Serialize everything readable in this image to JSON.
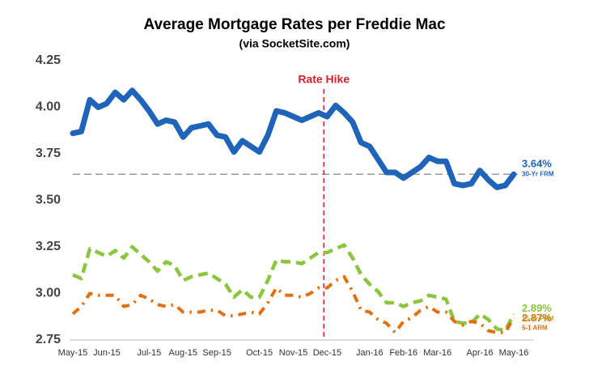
{
  "chart_data": {
    "type": "line",
    "title": "Average Mortgage Rates per Freddie Mac",
    "subtitle": "(via SocketSite.com)",
    "categories": [
      "May-15",
      null,
      null,
      null,
      "Jun-15",
      null,
      null,
      null,
      null,
      "Jul-15",
      null,
      null,
      null,
      "Aug-15",
      null,
      null,
      null,
      "Sep-15",
      null,
      null,
      null,
      null,
      "Oct-15",
      null,
      null,
      null,
      "Nov-15",
      null,
      null,
      null,
      "Dec-15",
      null,
      null,
      null,
      null,
      "Jan-16",
      null,
      null,
      null,
      "Feb-16",
      null,
      null,
      null,
      "Mar-16",
      null,
      null,
      null,
      null,
      "Apr-16",
      null,
      null,
      null,
      "May-16"
    ],
    "series": [
      {
        "name": "30-Yr FRM",
        "color": "#1f64b8",
        "line_style": "solid",
        "end_label": "3.64%",
        "values": [
          3.86,
          3.87,
          4.04,
          4.0,
          4.02,
          4.08,
          4.04,
          4.09,
          4.04,
          3.98,
          3.91,
          3.93,
          3.92,
          3.84,
          3.89,
          3.9,
          3.91,
          3.85,
          3.84,
          3.76,
          3.82,
          3.79,
          3.76,
          3.85,
          3.98,
          3.97,
          3.95,
          3.93,
          3.95,
          3.97,
          3.95,
          4.01,
          3.97,
          3.92,
          3.81,
          3.79,
          3.72,
          3.65,
          3.65,
          3.62,
          3.65,
          3.68,
          3.73,
          3.71,
          3.71,
          3.59,
          3.58,
          3.59,
          3.66,
          3.61,
          3.57,
          3.58,
          3.64
        ]
      },
      {
        "name": "15-Yr FRM",
        "color": "#8cc63f",
        "line_style": "dashed",
        "end_label": "2.89%",
        "values": [
          3.1,
          3.08,
          3.24,
          3.22,
          3.2,
          3.23,
          3.19,
          3.25,
          3.21,
          3.17,
          3.12,
          3.17,
          3.15,
          3.07,
          3.09,
          3.1,
          3.11,
          3.08,
          3.05,
          2.98,
          3.02,
          2.98,
          2.98,
          3.07,
          3.18,
          3.17,
          3.17,
          3.16,
          3.19,
          3.22,
          3.22,
          3.24,
          3.26,
          3.19,
          3.1,
          3.05,
          3.01,
          2.95,
          2.95,
          2.93,
          2.95,
          2.96,
          2.99,
          2.98,
          2.97,
          2.85,
          2.84,
          2.84,
          2.89,
          2.86,
          2.81,
          2.8,
          2.89
        ]
      },
      {
        "name": "5-1 ARM",
        "color": "#e2700f",
        "line_style": "dashdot",
        "end_label": "2.87%",
        "values": [
          2.89,
          2.93,
          3.0,
          2.99,
          2.99,
          2.99,
          2.93,
          2.94,
          2.99,
          2.97,
          2.94,
          2.93,
          2.94,
          2.9,
          2.9,
          2.9,
          2.91,
          2.91,
          2.88,
          2.88,
          2.89,
          2.9,
          2.89,
          2.95,
          3.03,
          2.99,
          2.99,
          2.98,
          3.0,
          3.03,
          3.03,
          3.07,
          3.09,
          3.01,
          2.91,
          2.9,
          2.86,
          2.84,
          2.79,
          2.85,
          2.87,
          2.91,
          2.93,
          2.9,
          2.9,
          2.85,
          2.83,
          2.85,
          2.84,
          2.8,
          2.79,
          2.79,
          2.87
        ]
      }
    ],
    "ylim": [
      2.75,
      4.25
    ],
    "yticks": [
      2.75,
      {
        "value": 3.0,
        "label": "3.00"
      },
      3.25,
      {
        "value": 3.5,
        "label": "3.50"
      },
      3.75,
      {
        "value": 4.0,
        "label": "4.00"
      },
      4.25
    ],
    "reference_line": 3.64,
    "annotation": {
      "text": "Rate Hike",
      "x": 29.6,
      "color": "#d9202a"
    },
    "grid": false
  }
}
